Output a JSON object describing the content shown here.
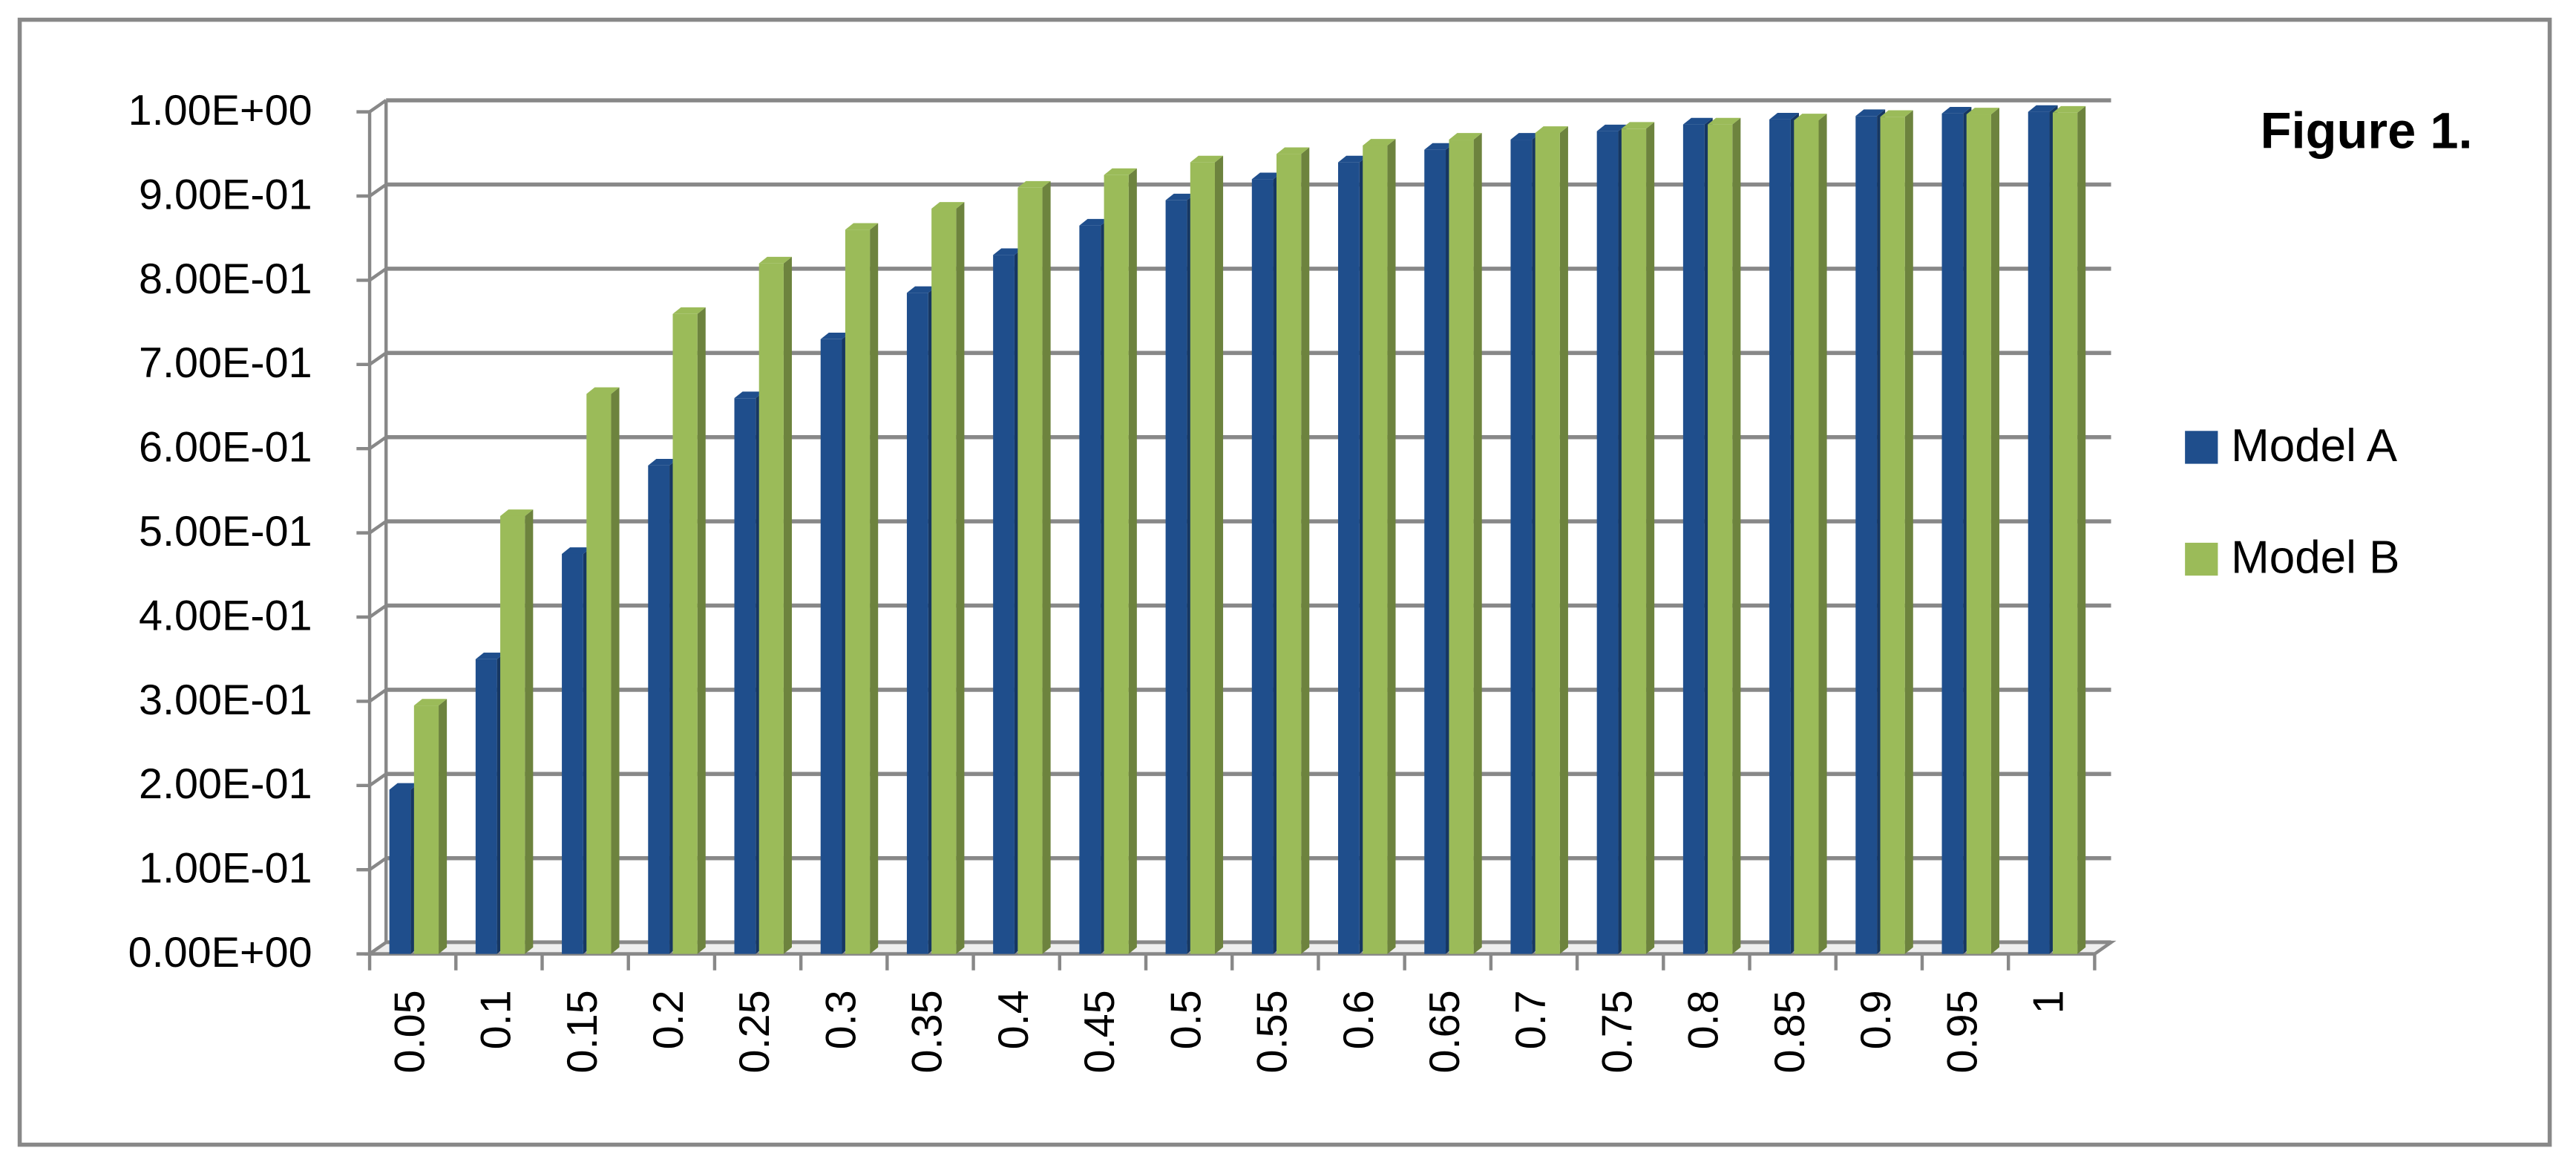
{
  "chart_data": {
    "type": "bar3d",
    "title": "Figure 1.",
    "categories": [
      "0.05",
      "0.1",
      "0.15",
      "0.2",
      "0.25",
      "0.3",
      "0.35",
      "0.4",
      "0.45",
      "0.5",
      "0.55",
      "0.6",
      "0.65",
      "0.7",
      "0.75",
      "0.8",
      "0.85",
      "0.9",
      "0.95",
      "1"
    ],
    "series": [
      {
        "name": "Model A",
        "color": "#1f4e8c",
        "values": [
          0.195,
          0.35,
          0.475,
          0.58,
          0.66,
          0.73,
          0.785,
          0.83,
          0.865,
          0.895,
          0.92,
          0.94,
          0.955,
          0.967,
          0.977,
          0.985,
          0.991,
          0.995,
          0.998,
          1.0
        ]
      },
      {
        "name": "Model B",
        "color": "#9bbb59",
        "values": [
          0.295,
          0.52,
          0.665,
          0.76,
          0.82,
          0.86,
          0.885,
          0.91,
          0.925,
          0.94,
          0.95,
          0.96,
          0.967,
          0.975,
          0.98,
          0.985,
          0.99,
          0.994,
          0.997,
          0.999
        ]
      }
    ],
    "ylim": [
      0,
      1
    ],
    "yticks": [
      {
        "value": 0,
        "label": "0.00E+00"
      },
      {
        "value": 0.1,
        "label": "1.00E-01"
      },
      {
        "value": 0.2,
        "label": "2.00E-01"
      },
      {
        "value": 0.3,
        "label": "3.00E-01"
      },
      {
        "value": 0.4,
        "label": "4.00E-01"
      },
      {
        "value": 0.5,
        "label": "5.00E-01"
      },
      {
        "value": 0.6,
        "label": "6.00E-01"
      },
      {
        "value": 0.7,
        "label": "7.00E-01"
      },
      {
        "value": 0.8,
        "label": "8.00E-01"
      },
      {
        "value": 0.9,
        "label": "9.00E-01"
      },
      {
        "value": 1,
        "label": "1.00E+00"
      }
    ],
    "grid": true,
    "legend": "right"
  }
}
